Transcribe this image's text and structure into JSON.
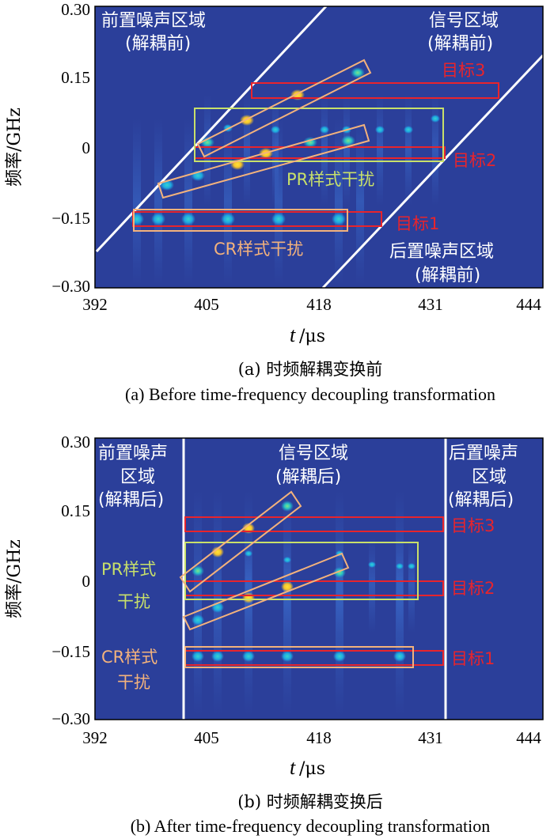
{
  "colors": {
    "background": "#2b3f9a",
    "divider": "#ffffff",
    "target": "#e8242c",
    "pr": "#c8e06a",
    "cr": "#f3b27c"
  },
  "chart_data": [
    {
      "type": "heatmap",
      "panel": "a",
      "xlabel_italic": "t",
      "xlabel_unit": "/μs",
      "ylabel": "频率/GHz",
      "xlim": [
        392,
        444
      ],
      "ylim": [
        -0.3,
        0.3
      ],
      "xticks": [
        "392",
        "405",
        "418",
        "431",
        "444"
      ],
      "yticks": [
        "−0.30",
        "−0.15",
        "0",
        "0.15",
        "0.30"
      ],
      "region_labels": [
        {
          "name": "pre",
          "lines": [
            "前置噪声区域",
            "(解耦前)"
          ]
        },
        {
          "name": "signal",
          "lines": [
            "信号区域",
            "(解耦前)"
          ]
        },
        {
          "name": "post",
          "lines": [
            "后置噪声区域",
            "(解耦前)"
          ]
        }
      ],
      "annotations": [
        {
          "name": "target-1",
          "text": "目标1"
        },
        {
          "name": "target-2",
          "text": "目标2"
        },
        {
          "name": "target-3",
          "text": "目标3"
        },
        {
          "name": "pr-interference",
          "text": "PR样式干扰"
        },
        {
          "name": "cr-interference",
          "text": "CR样式干扰"
        }
      ],
      "caption_cn": "(a) 时频解耦变换前",
      "caption_en": "(a) Before time-frequency decoupling transformation"
    },
    {
      "type": "heatmap",
      "panel": "b",
      "xlabel_italic": "t",
      "xlabel_unit": "/μs",
      "ylabel": "频率/GHz",
      "xlim": [
        392,
        444
      ],
      "ylim": [
        -0.3,
        0.3
      ],
      "xticks": [
        "392",
        "405",
        "418",
        "431",
        "444"
      ],
      "yticks": [
        "−0.30",
        "−0.15",
        "0",
        "0.15",
        "0.30"
      ],
      "region_labels": [
        {
          "name": "pre",
          "lines": [
            "前置噪声",
            "区域",
            "(解耦后)"
          ]
        },
        {
          "name": "signal",
          "lines": [
            "信号区域",
            "(解耦后)"
          ]
        },
        {
          "name": "post",
          "lines": [
            "后置噪声",
            "区域",
            "(解耦后)"
          ]
        }
      ],
      "annotations": [
        {
          "name": "target-1",
          "text": "目标1"
        },
        {
          "name": "target-2",
          "text": "目标2"
        },
        {
          "name": "target-3",
          "text": "目标3"
        },
        {
          "name": "pr-interference",
          "lines": [
            "PR样式",
            "干扰"
          ]
        },
        {
          "name": "cr-interference",
          "lines": [
            "CR样式",
            "干扰"
          ]
        }
      ],
      "caption_cn": "(b) 时频解耦变换后",
      "caption_en": "(b) After time-frequency decoupling transformation"
    }
  ]
}
